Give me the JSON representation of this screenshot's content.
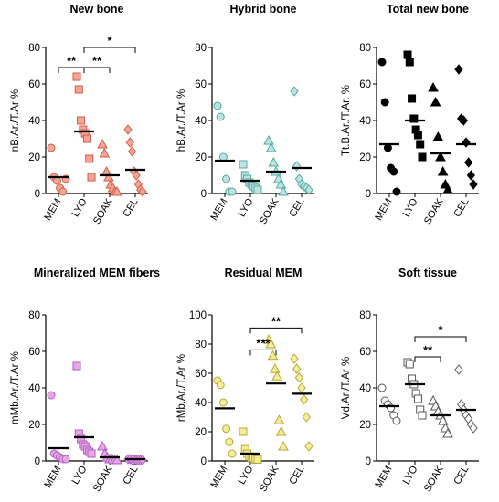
{
  "chart_data": [
    {
      "type": "scatter",
      "title": "New bone",
      "ylabel": "nB.Ar./T.Ar %",
      "categories": [
        "MEM",
        "LYO",
        "SOAK",
        "CEL"
      ],
      "ylim": [
        0,
        80
      ],
      "yticks": [
        0,
        20,
        40,
        60,
        80
      ],
      "marker": "circle-diamond-mixed",
      "fill": "#F2A796",
      "stroke": "#D45A45",
      "markers": [
        "circle",
        "square",
        "triangle",
        "diamond"
      ],
      "means": [
        9,
        34,
        10,
        13
      ],
      "groups": [
        [
          25,
          9,
          7,
          3,
          1,
          8
        ],
        [
          64,
          57,
          40,
          35,
          33,
          30,
          19,
          9
        ],
        [
          27,
          22,
          12,
          9,
          5,
          3,
          1,
          1
        ],
        [
          35,
          28,
          23,
          12,
          10,
          5,
          2,
          1
        ]
      ],
      "brackets": [
        {
          "from": 0,
          "to": 1,
          "y": 69,
          "label": "**"
        },
        {
          "from": 1,
          "to": 2,
          "y": 69,
          "label": "**"
        },
        {
          "from": 1,
          "to": 3,
          "y": 80,
          "label": "*"
        }
      ]
    },
    {
      "type": "scatter",
      "title": "Hybrid bone",
      "ylabel": "hB.Ar./T.Ar %",
      "categories": [
        "MEM",
        "LYO",
        "SOAK",
        "CEL"
      ],
      "ylim": [
        0,
        80
      ],
      "yticks": [
        0,
        20,
        40,
        60,
        80
      ],
      "fill": "#BFE3E0",
      "stroke": "#4FA9A3",
      "hollow": true,
      "markers": [
        "circle",
        "square",
        "triangle",
        "diamond"
      ],
      "means": [
        18,
        7,
        12,
        14
      ],
      "groups": [
        [
          48,
          42,
          20,
          8,
          1,
          1
        ],
        [
          16,
          10,
          8,
          6,
          5,
          4,
          3,
          2
        ],
        [
          29,
          25,
          17,
          12,
          8,
          5,
          1
        ],
        [
          56,
          15,
          8,
          5,
          4,
          3,
          2
        ]
      ],
      "brackets": []
    },
    {
      "type": "scatter",
      "title": "Total new bone",
      "ylabel": "Tt.B.Ar./T.Ar. %",
      "categories": [
        "MEM",
        "LYO",
        "SOAK",
        "CEL"
      ],
      "ylim": [
        0,
        80
      ],
      "yticks": [
        0,
        20,
        40,
        60,
        80
      ],
      "fill": "#000000",
      "stroke": "#000000",
      "markers": [
        "circle",
        "square",
        "triangle",
        "diamond"
      ],
      "means": [
        27,
        40,
        22,
        27
      ],
      "groups": [
        [
          72,
          50,
          25,
          14,
          12,
          1
        ],
        [
          76,
          72,
          52,
          41,
          35,
          32,
          27,
          20
        ],
        [
          58,
          50,
          31,
          20,
          12,
          5,
          2
        ],
        [
          68,
          41,
          40,
          28,
          17,
          10,
          5
        ]
      ],
      "brackets": []
    },
    {
      "type": "scatter",
      "title": "Mineralized MEM fibers",
      "ylabel": "mMb.Ar./T.Ar %",
      "categories": [
        "MEM",
        "LYO",
        "SOAK",
        "CEL"
      ],
      "ylim": [
        0,
        80
      ],
      "yticks": [
        0,
        20,
        40,
        60,
        80
      ],
      "fill": "#E6A9E6",
      "stroke": "#B05CC0",
      "markers": [
        "circle",
        "square",
        "triangle",
        "diamond"
      ],
      "means": [
        7,
        13,
        2,
        1
      ],
      "groups": [
        [
          36,
          4,
          3,
          2,
          1,
          1
        ],
        [
          52,
          15,
          12,
          9,
          8,
          6,
          5,
          4
        ],
        [
          8,
          4,
          2,
          1,
          1,
          0.5,
          0.5
        ],
        [
          1,
          1,
          0.5,
          0.5,
          0.5,
          0.5,
          0.5,
          0.5
        ]
      ],
      "brackets": []
    },
    {
      "type": "scatter",
      "title": "Residual MEM",
      "ylabel": "rMb.Ar./T.Ar %",
      "categories": [
        "MEM",
        "LYO",
        "SOAK",
        "CEL"
      ],
      "ylim": [
        0,
        100
      ],
      "yticks": [
        0,
        20,
        40,
        60,
        80,
        100
      ],
      "fill": "#F3EE9E",
      "stroke": "#B8A830",
      "markers": [
        "circle",
        "square",
        "triangle",
        "diamond"
      ],
      "means": [
        36,
        5,
        53,
        46
      ],
      "groups": [
        [
          55,
          52,
          40,
          22,
          13,
          5
        ],
        [
          20,
          8,
          5,
          3,
          2,
          2,
          1,
          1
        ],
        [
          83,
          80,
          72,
          63,
          58,
          28,
          20,
          10
        ],
        [
          70,
          63,
          57,
          50,
          42,
          30,
          10
        ]
      ],
      "brackets": [
        {
          "from": 1,
          "to": 2,
          "y": 76,
          "label": "***"
        },
        {
          "from": 1,
          "to": 3,
          "y": 91,
          "label": "**"
        }
      ]
    },
    {
      "type": "scatter",
      "title": "Soft tissue",
      "ylabel": "Vd.Ar./T.Ar %",
      "categories": [
        "MEM",
        "LYO",
        "SOAK",
        "CEL"
      ],
      "ylim": [
        0,
        80
      ],
      "yticks": [
        0,
        20,
        40,
        60,
        80
      ],
      "fill": "#FFFFFF",
      "stroke": "#555555",
      "hollow": true,
      "markers": [
        "circle",
        "square",
        "triangle",
        "diamond"
      ],
      "means": [
        30,
        42,
        25,
        28
      ],
      "groups": [
        [
          40,
          33,
          31,
          29,
          25,
          22
        ],
        [
          54,
          53,
          45,
          42,
          37,
          34,
          28,
          25
        ],
        [
          33,
          30,
          27,
          25,
          22,
          18,
          15
        ],
        [
          50,
          31,
          28,
          25,
          23,
          20,
          18
        ]
      ],
      "brackets": [
        {
          "from": 1,
          "to": 2,
          "y": 57,
          "label": "**"
        },
        {
          "from": 1,
          "to": 3,
          "y": 68,
          "label": "*"
        }
      ]
    }
  ]
}
